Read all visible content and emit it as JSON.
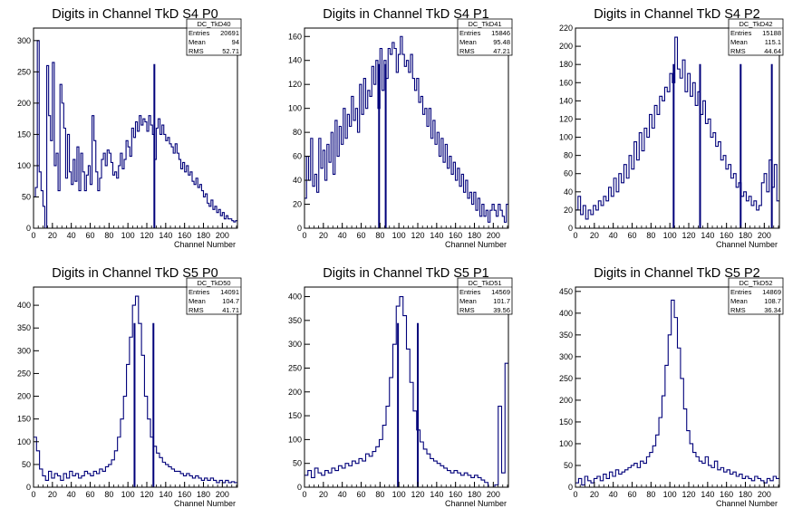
{
  "chart_data": [
    {
      "type": "histogram",
      "title": "Digits in Channel TkD S4 P0",
      "xlabel": "Channel Number",
      "ylabel": "",
      "xlim": [
        0,
        216
      ],
      "ylim": [
        0,
        320
      ],
      "xticks": [
        0,
        20,
        40,
        60,
        80,
        100,
        120,
        140,
        160,
        180,
        200
      ],
      "yticks": [
        0,
        50,
        100,
        150,
        200,
        250,
        300
      ],
      "stats": {
        "name": "DC_TkD40",
        "entries": "20691",
        "mean": "94",
        "rms": "52.71"
      },
      "stats_labels": [
        "Entries",
        "Mean",
        "RMS"
      ],
      "series": [
        {
          "color": "#00007a",
          "values": [
            50,
            65,
            300,
            90,
            60,
            35,
            0,
            260,
            180,
            140,
            265,
            100,
            120,
            60,
            230,
            200,
            160,
            80,
            150,
            90,
            70,
            110,
            75,
            130,
            60,
            120,
            90,
            60,
            85,
            100,
            70,
            180,
            140,
            90,
            60,
            80,
            110,
            120,
            100,
            125,
            120,
            105,
            85,
            90,
            80,
            100,
            120,
            95,
            110,
            140,
            130,
            115,
            160,
            145,
            170,
            155,
            180,
            165,
            175,
            170,
            155,
            180,
            165,
            150,
            110,
            160,
            175,
            150,
            165,
            150,
            140,
            145,
            135,
            130,
            120,
            135,
            120,
            110,
            95,
            105,
            90,
            100,
            85,
            90,
            75,
            70,
            80,
            65,
            70,
            60,
            50,
            55,
            40,
            35,
            45,
            30,
            35,
            25,
            30,
            20,
            25,
            15,
            20,
            15,
            15,
            12,
            10,
            12
          ]
        }
      ],
      "spikes": [
        {
          "x": 128,
          "y": 0
        }
      ]
    },
    {
      "type": "histogram",
      "title": "Digits in Channel TkD S4 P1",
      "xlabel": "Channel Number",
      "ylabel": "",
      "xlim": [
        0,
        216
      ],
      "ylim": [
        0,
        167
      ],
      "xticks": [
        0,
        20,
        40,
        60,
        80,
        100,
        120,
        140,
        160,
        180,
        200
      ],
      "yticks": [
        0,
        20,
        40,
        60,
        80,
        100,
        120,
        140,
        160
      ],
      "stats": {
        "name": "DC_TkD41",
        "entries": "15846",
        "mean": "95.48",
        "rms": "47.21"
      },
      "stats_labels": [
        "Entries",
        "Mean",
        "RMS"
      ],
      "series": [
        {
          "color": "#00007a",
          "values": [
            25,
            60,
            40,
            75,
            35,
            45,
            30,
            75,
            50,
            65,
            40,
            70,
            55,
            80,
            45,
            90,
            60,
            85,
            70,
            100,
            75,
            95,
            85,
            110,
            90,
            100,
            80,
            120,
            95,
            125,
            100,
            115,
            110,
            135,
            120,
            140,
            100,
            150,
            115,
            140,
            125,
            150,
            145,
            155,
            150,
            130,
            145,
            160,
            145,
            135,
            140,
            130,
            145,
            125,
            115,
            125,
            105,
            110,
            95,
            100,
            85,
            100,
            75,
            90,
            70,
            80,
            60,
            75,
            55,
            70,
            50,
            60,
            45,
            55,
            40,
            50,
            35,
            45,
            30,
            40,
            25,
            30,
            20,
            30,
            15,
            25,
            10,
            20,
            10,
            15,
            5,
            15,
            20,
            15,
            10,
            20,
            15,
            10,
            5,
            20
          ]
        }
      ],
      "spikes": [
        {
          "x": 79,
          "y": 0
        },
        {
          "x": 86,
          "y": 0
        }
      ]
    },
    {
      "type": "histogram",
      "title": "Digits in Channel TkD S4 P2",
      "xlabel": "Channel Number",
      "ylabel": "",
      "xlim": [
        0,
        216
      ],
      "ylim": [
        0,
        220
      ],
      "xticks": [
        0,
        20,
        40,
        60,
        80,
        100,
        120,
        140,
        160,
        180,
        200
      ],
      "yticks": [
        0,
        20,
        40,
        60,
        80,
        100,
        120,
        140,
        160,
        180,
        200,
        220
      ],
      "stats": {
        "name": "DC_TkD42",
        "entries": "15188",
        "mean": "115.1",
        "rms": "44.64"
      },
      "stats_labels": [
        "Entries",
        "Mean",
        "RMS"
      ],
      "series": [
        {
          "color": "#00007a",
          "values": [
            20,
            35,
            15,
            25,
            10,
            20,
            15,
            25,
            20,
            30,
            25,
            35,
            30,
            45,
            35,
            55,
            40,
            60,
            50,
            70,
            55,
            80,
            65,
            95,
            75,
            105,
            85,
            110,
            100,
            125,
            110,
            135,
            125,
            145,
            140,
            155,
            150,
            170,
            160,
            210,
            175,
            165,
            185,
            150,
            170,
            145,
            160,
            135,
            150,
            125,
            140,
            115,
            120,
            100,
            105,
            90,
            95,
            75,
            80,
            65,
            70,
            55,
            60,
            45,
            50,
            35,
            40,
            30,
            35,
            25,
            30,
            20,
            25,
            50,
            60,
            40,
            75,
            45,
            70,
            30
          ]
        }
      ],
      "spikes": [
        {
          "x": 104,
          "y": 0
        },
        {
          "x": 132,
          "y": 0
        },
        {
          "x": 175,
          "y": 0
        },
        {
          "x": 208,
          "y": 0
        }
      ]
    },
    {
      "type": "histogram",
      "title": "Digits in Channel TkD S5 P0",
      "xlabel": "Channel Number",
      "ylabel": "",
      "xlim": [
        0,
        216
      ],
      "ylim": [
        0,
        440
      ],
      "xticks": [
        0,
        20,
        40,
        60,
        80,
        100,
        120,
        140,
        160,
        180,
        200
      ],
      "yticks": [
        0,
        50,
        100,
        150,
        200,
        250,
        300,
        350,
        400
      ],
      "stats": {
        "name": "DC_TkD50",
        "entries": "14091",
        "mean": "104.7",
        "rms": "41.71"
      },
      "stats_labels": [
        "Entries",
        "Mean",
        "RMS"
      ],
      "series": [
        {
          "color": "#00007a",
          "values": [
            110,
            80,
            40,
            25,
            15,
            35,
            20,
            30,
            25,
            15,
            30,
            20,
            35,
            25,
            30,
            20,
            25,
            35,
            30,
            25,
            35,
            30,
            40,
            35,
            45,
            50,
            60,
            80,
            110,
            150,
            200,
            270,
            330,
            400,
            420,
            360,
            290,
            200,
            150,
            110,
            90,
            75,
            65,
            55,
            50,
            45,
            40,
            35,
            35,
            30,
            25,
            30,
            25,
            20,
            25,
            20,
            15,
            20,
            15,
            20,
            15,
            10,
            15,
            10,
            15,
            10,
            12,
            10
          ]
        }
      ],
      "spikes": [
        {
          "x": 107,
          "y": 0
        },
        {
          "x": 127,
          "y": 0
        }
      ]
    },
    {
      "type": "histogram",
      "title": "Digits in Channel TkD S5 P1",
      "xlabel": "Channel Number",
      "ylabel": "",
      "xlim": [
        0,
        216
      ],
      "ylim": [
        0,
        420
      ],
      "xticks": [
        0,
        20,
        40,
        60,
        80,
        100,
        120,
        140,
        160,
        180,
        200
      ],
      "yticks": [
        0,
        50,
        100,
        150,
        200,
        250,
        300,
        350,
        400
      ],
      "stats": {
        "name": "DC_TkD51",
        "entries": "14569",
        "mean": "101.7",
        "rms": "39.56"
      },
      "stats_labels": [
        "Entries",
        "Mean",
        "RMS"
      ],
      "series": [
        {
          "color": "#00007a",
          "values": [
            25,
            35,
            20,
            40,
            30,
            25,
            35,
            30,
            40,
            35,
            45,
            40,
            50,
            45,
            55,
            50,
            60,
            55,
            70,
            65,
            75,
            85,
            100,
            130,
            170,
            230,
            300,
            380,
            400,
            360,
            290,
            220,
            160,
            120,
            95,
            80,
            70,
            60,
            55,
            50,
            45,
            40,
            35,
            30,
            35,
            30,
            25,
            30,
            25,
            20,
            25,
            20,
            15,
            10,
            0,
            0,
            5,
            170,
            30,
            260
          ]
        }
      ],
      "spikes": [
        {
          "x": 99,
          "y": 0
        },
        {
          "x": 120,
          "y": 0
        }
      ]
    },
    {
      "type": "histogram",
      "title": "Digits in Channel TkD S5 P2",
      "xlabel": "Channel Number",
      "ylabel": "",
      "xlim": [
        0,
        216
      ],
      "ylim": [
        0,
        460
      ],
      "xticks": [
        0,
        20,
        40,
        60,
        80,
        100,
        120,
        140,
        160,
        180,
        200
      ],
      "yticks": [
        0,
        50,
        100,
        150,
        200,
        250,
        300,
        350,
        400,
        450
      ],
      "stats": {
        "name": "DC_TkD52",
        "entries": "14869",
        "mean": "108.7",
        "rms": "36.34"
      },
      "stats_labels": [
        "Entries",
        "Mean",
        "RMS"
      ],
      "series": [
        {
          "color": "#00007a",
          "values": [
            10,
            20,
            5,
            25,
            15,
            10,
            20,
            25,
            15,
            30,
            20,
            35,
            25,
            40,
            30,
            35,
            40,
            45,
            50,
            55,
            45,
            60,
            55,
            70,
            80,
            95,
            120,
            160,
            210,
            280,
            350,
            430,
            390,
            320,
            250,
            180,
            130,
            100,
            80,
            70,
            60,
            55,
            70,
            50,
            45,
            60,
            40,
            45,
            35,
            40,
            30,
            35,
            25,
            30,
            20,
            25,
            20,
            15,
            25,
            20,
            15,
            10,
            20,
            15,
            25,
            20
          ]
        }
      ],
      "spikes": []
    }
  ]
}
